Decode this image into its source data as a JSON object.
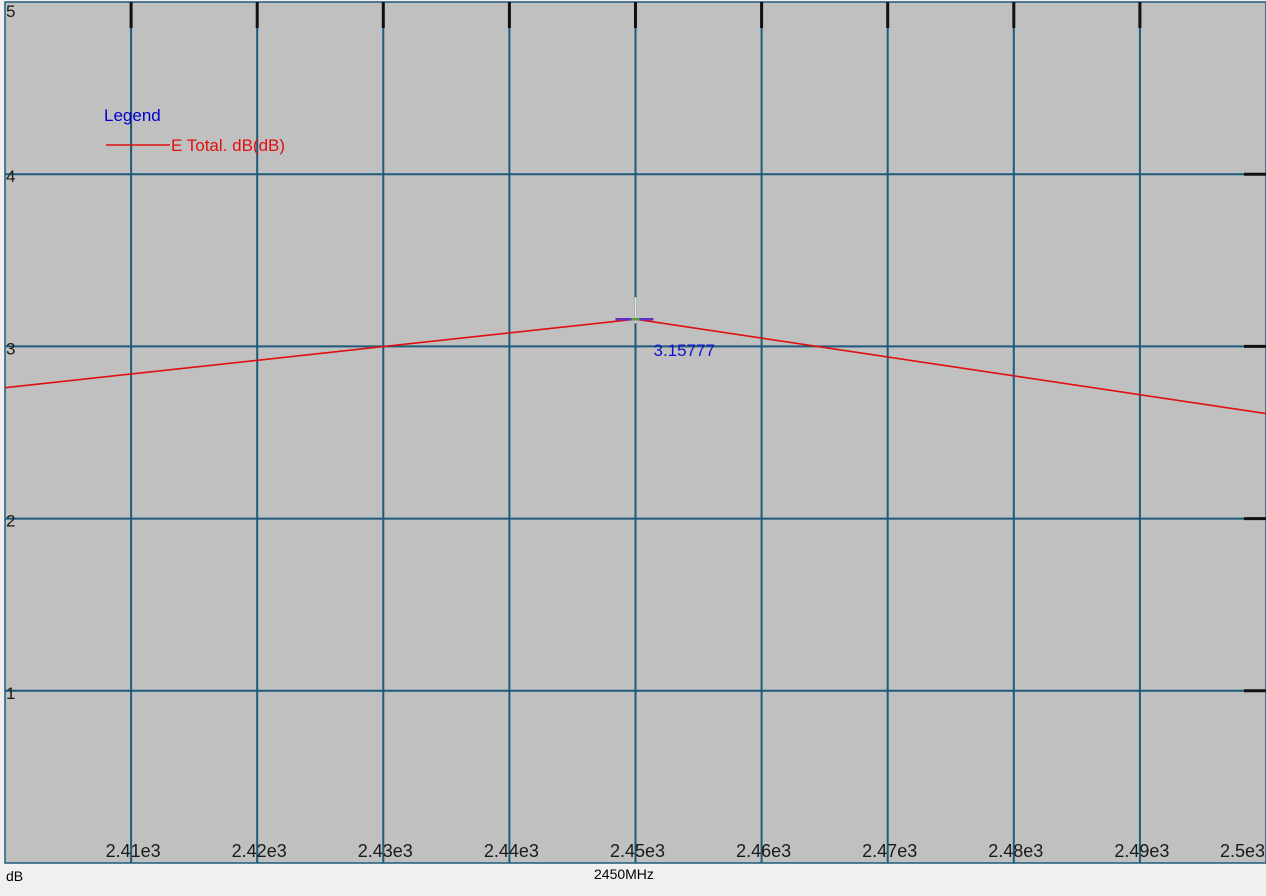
{
  "chart_data": {
    "type": "line",
    "title": "",
    "xlabel": "2450MHz",
    "ylabel": "dB",
    "xlim": [
      2400,
      2500
    ],
    "ylim": [
      0,
      5
    ],
    "x_ticks": [
      2410,
      2420,
      2430,
      2440,
      2450,
      2460,
      2470,
      2480,
      2490,
      2500
    ],
    "x_tick_labels": [
      "2.41e3",
      "2.42e3",
      "2.43e3",
      "2.44e3",
      "2.45e3",
      "2.46e3",
      "2.47e3",
      "2.48e3",
      "2.49e3",
      "2.5e3"
    ],
    "y_ticks": [
      1,
      2,
      3,
      4,
      5
    ],
    "y_tick_labels": [
      "1",
      "2",
      "3",
      "4",
      "5"
    ],
    "grid": true,
    "legend": {
      "title": "Legend",
      "position": "top-left"
    },
    "series": [
      {
        "name": "E Total. dB(dB)",
        "color": "#e01010",
        "x": [
          2400,
          2450,
          2500
        ],
        "y": [
          2.76,
          3.15777,
          2.61
        ]
      }
    ],
    "marker": {
      "x": 2450,
      "y": 3.15777,
      "label": "3.15777"
    }
  },
  "colors": {
    "plot_background": "#c0c0c0",
    "grid": "#1e5a7a",
    "series": "#e01010",
    "marker_label": "#1010d0",
    "legend_title": "#0000cc"
  }
}
